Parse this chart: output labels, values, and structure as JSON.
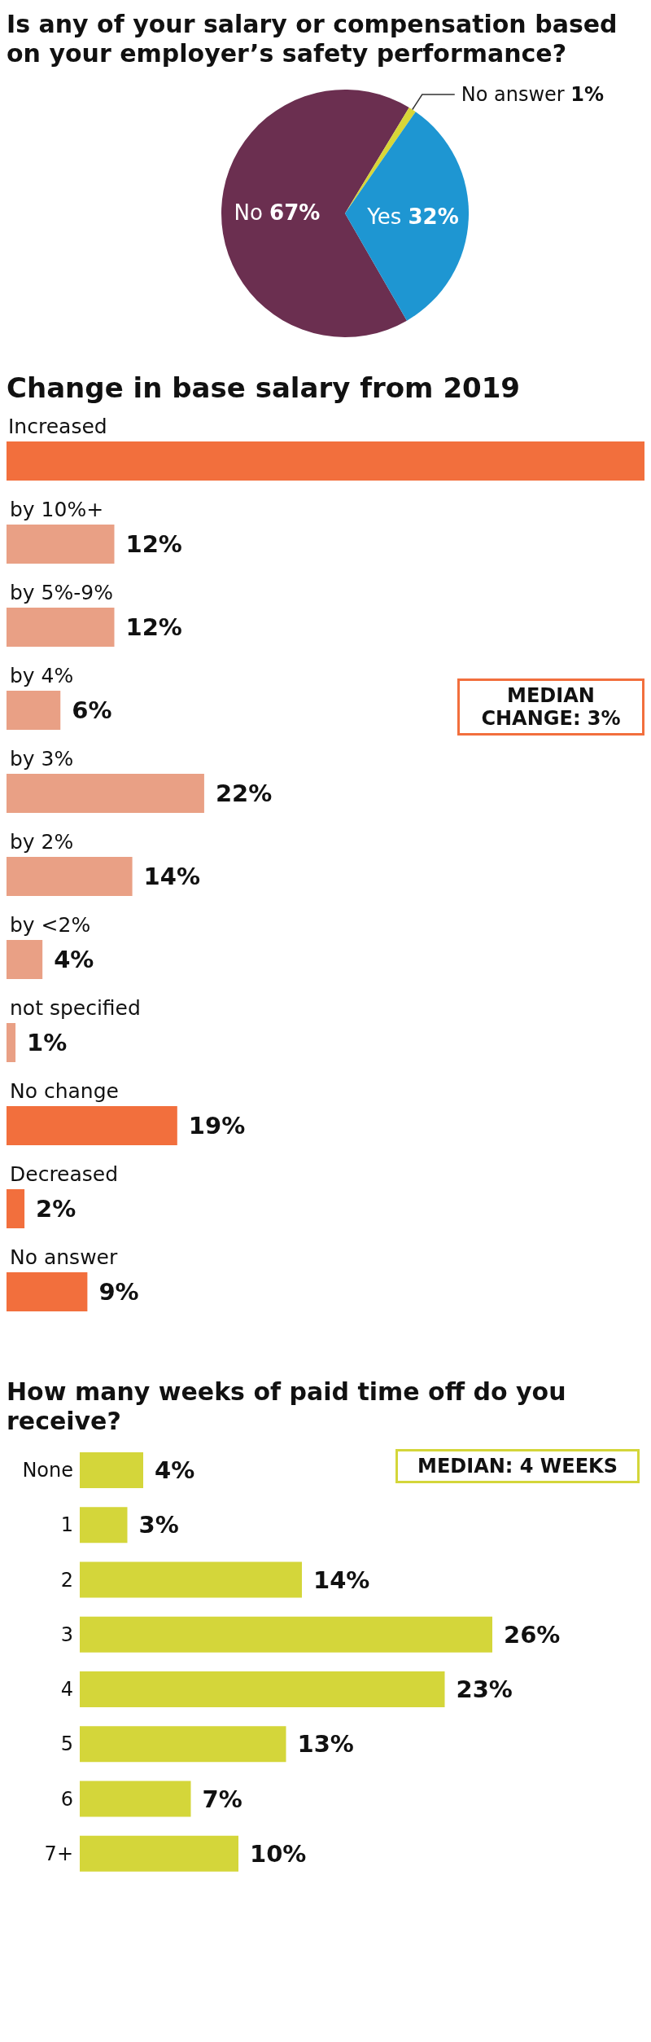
{
  "chart_data": [
    {
      "type": "pie",
      "title": "Is any of your salary or compensation based on your employer’s safety performance?",
      "categories": [
        "No",
        "No answer",
        "Yes"
      ],
      "values": [
        67,
        1,
        32
      ],
      "value_labels": [
        "67%",
        "1%",
        "32%"
      ],
      "colors": [
        "#6b2f50",
        "#d8d637",
        "#1e96d2"
      ]
    },
    {
      "type": "bar",
      "orientation": "horizontal",
      "title": "Change in base salary from 2019",
      "categories": [
        "Increased",
        "by 10%+",
        "by 5%-9%",
        "by 4%",
        "by 3%",
        "by 2%",
        "by <2%",
        "not specified",
        "No change",
        "Decreased",
        "No answer"
      ],
      "values": [
        71,
        12,
        12,
        6,
        22,
        14,
        4,
        1,
        19,
        2,
        9
      ],
      "value_labels": [
        null,
        "12%",
        "12%",
        "6%",
        "22%",
        "14%",
        "4%",
        "1%",
        "19%",
        "2%",
        "9%"
      ],
      "colors": [
        "#f26f3d",
        "#e9a085",
        "#e9a085",
        "#e9a085",
        "#e9a085",
        "#e9a085",
        "#e9a085",
        "#e9a085",
        "#f26f3d",
        "#f26f3d",
        "#f26f3d"
      ],
      "annotations": [
        "MEDIAN CHANGE: 3%"
      ]
    },
    {
      "type": "bar",
      "orientation": "horizontal",
      "title": "How many weeks of paid time off do you receive?",
      "categories": [
        "None",
        "1",
        "2",
        "3",
        "4",
        "5",
        "6",
        "7+"
      ],
      "values": [
        4,
        3,
        14,
        26,
        23,
        13,
        7,
        10
      ],
      "value_labels": [
        "4%",
        "3%",
        "14%",
        "26%",
        "23%",
        "13%",
        "7%",
        "10%"
      ],
      "color": "#d4d63a",
      "annotations": [
        "MEDIAN: 4 WEEKS"
      ]
    }
  ]
}
